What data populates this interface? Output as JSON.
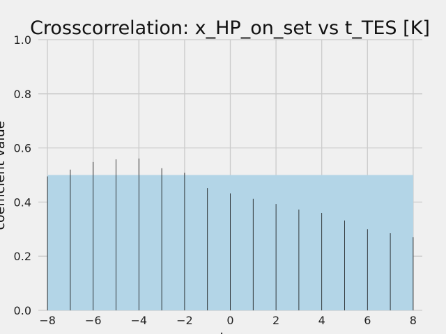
{
  "chart_data": {
    "type": "bar",
    "title": "Crosscorrelation: x_HP_on_set vs t_TES [K]",
    "xlabel": "lag",
    "ylabel": "coefficient value",
    "x": [
      -8,
      -7,
      -6,
      -5,
      -4,
      -3,
      -2,
      -1,
      0,
      1,
      2,
      3,
      4,
      5,
      6,
      7,
      8
    ],
    "values": [
      0.495,
      0.52,
      0.548,
      0.558,
      0.561,
      0.525,
      0.508,
      0.452,
      0.432,
      0.412,
      0.393,
      0.372,
      0.36,
      0.332,
      0.3,
      0.285,
      0.27
    ],
    "xlim": [
      -8.4,
      8.4
    ],
    "ylim": [
      0,
      1.0
    ],
    "xticks": [
      -8,
      -6,
      -4,
      -2,
      0,
      2,
      4,
      6,
      8
    ],
    "yticks": [
      0.0,
      0.2,
      0.4,
      0.6,
      0.8,
      1.0
    ],
    "xtick_labels": [
      "−8",
      "−6",
      "−4",
      "−2",
      "0",
      "2",
      "4",
      "6",
      "8"
    ],
    "ytick_labels": [
      "0.0",
      "0.2",
      "0.4",
      "0.6",
      "0.8",
      "1.0"
    ],
    "shaded_band": {
      "x_from": -8,
      "x_to": 8,
      "y_from": 0,
      "y_to": 0.5
    },
    "grid": true,
    "colors": {
      "background": "#f0f0f0",
      "grid": "#cbcbcb",
      "band": "#b3d5e7",
      "bar": "#111111"
    }
  }
}
